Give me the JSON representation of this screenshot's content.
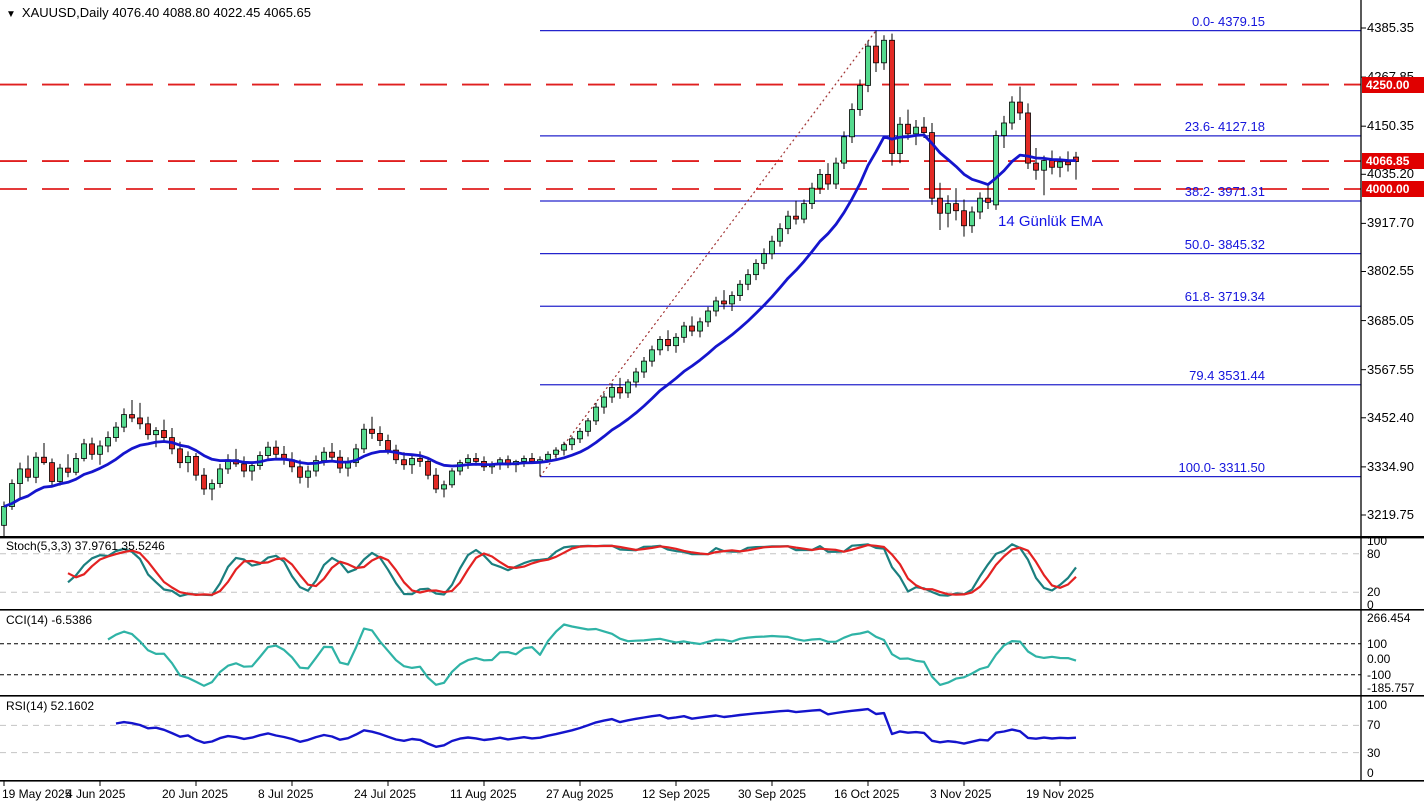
{
  "title": {
    "text": "XAUUSD,Daily  4076.40 4088.80 4022.45 4065.65",
    "symbol": "XAUUSD",
    "timeframe": "Daily"
  },
  "annotation": {
    "ema_label": "14 Günlük EMA"
  },
  "colors": {
    "bull": "#55da8e",
    "bear": "#e32a25",
    "wick": "#000000",
    "ema": "#1515cd",
    "fib_line": "#2424cc",
    "fib_text": "#1414dc",
    "red_dash": "#e01f1f",
    "trend_dotted": "#a03030",
    "stoch_main": "#1b7f7f",
    "stoch_signal": "#e32222",
    "cci_line": "#2fb3a6",
    "rsi_line": "#1414cc",
    "badge_bg": "#e00000",
    "gray_dash": "#c4c4c4",
    "black_dash": "#000000",
    "axis_line": "#000000"
  },
  "price_axis": {
    "labels": [
      "4385.35",
      "4267.85",
      "4150.35",
      "4035.20",
      "3917.70",
      "3802.55",
      "3685.05",
      "3567.55",
      "3452.40",
      "3334.90",
      "3219.75"
    ]
  },
  "price_badges": [
    {
      "text": "4250.00",
      "value": 4250.0
    },
    {
      "text": "4066.85",
      "value": 4066.85
    },
    {
      "text": "4000.00",
      "value": 4000.0
    }
  ],
  "x_axis": {
    "dates": [
      "19 May 2025",
      "4 Jun 2025",
      "20 Jun 2025",
      "8 Jul 2025",
      "24 Jul 2025",
      "11 Aug 2025",
      "27 Aug 2025",
      "12 Sep 2025",
      "30 Sep 2025",
      "16 Oct 2025",
      "3 Nov 2025",
      "19 Nov 2025"
    ],
    "candles_per_label": 12
  },
  "panes": {
    "stoch": {
      "label": "Stoch(5,3,3) 37.9761 35.5246",
      "axis_labels": [
        {
          "text": "100",
          "value": 100
        },
        {
          "text": "80",
          "value": 80
        },
        {
          "text": "20",
          "value": 20
        },
        {
          "text": "0",
          "value": 0
        }
      ],
      "level_lines": [
        80,
        20
      ]
    },
    "cci": {
      "label": "CCI(14) -6.5386",
      "axis_labels": [
        {
          "text": "266.454",
          "value": 266.454
        },
        {
          "text": "100",
          "value": 100
        },
        {
          "text": "0.00",
          "value": 0
        },
        {
          "text": "-100",
          "value": -100
        },
        {
          "text": "-185.757",
          "value": -185.757
        }
      ],
      "level_lines": [
        100,
        -100
      ]
    },
    "rsi": {
      "label": "RSI(14) 52.1602",
      "axis_labels": [
        {
          "text": "100",
          "value": 100
        },
        {
          "text": "70",
          "value": 70
        },
        {
          "text": "30",
          "value": 30
        },
        {
          "text": "0",
          "value": 0
        }
      ],
      "level_lines": [
        70,
        30
      ]
    }
  },
  "chart_data": {
    "type": "candlestick",
    "symbol": "XAUUSD",
    "timeframe": "Daily",
    "title": "XAUUSD,Daily",
    "last_ohlc": {
      "open": 4076.4,
      "high": 4088.8,
      "low": 4022.45,
      "close": 4065.65
    },
    "ylim_main": [
      3171.9,
      4452.4
    ],
    "current_price": 4066.85,
    "horizontal_lines": [
      4250.0,
      4000.0
    ],
    "fibonacci": {
      "anchor_index": 67,
      "peak_index": 109,
      "levels": [
        {
          "label": "0.0- 4379.15",
          "value": 4379.15
        },
        {
          "label": "23.6- 4127.18",
          "value": 4127.18
        },
        {
          "label": "38.2- 3971.31",
          "value": 3971.31
        },
        {
          "label": "50.0- 3845.32",
          "value": 3845.32
        },
        {
          "label": "61.8- 3719.34",
          "value": 3719.34
        },
        {
          "label": "79.4 3531.44",
          "value": 3531.44
        },
        {
          "label": "100.0- 3311.50",
          "value": 3311.5
        }
      ]
    },
    "trendline": {
      "from_index": 67,
      "from_value": 3311.5,
      "to_index": 109,
      "to_value": 4379.15
    },
    "overlays": {
      "ema_period": 14
    },
    "indicators": {
      "stoch": {
        "params": "5,3,3",
        "current_main": 37.9761,
        "current_signal": 35.5246,
        "levels": [
          80,
          20
        ],
        "range": [
          0,
          100
        ]
      },
      "cci": {
        "params": "14",
        "current": -6.5386,
        "range": [
          -185.757,
          266.454
        ],
        "levels": [
          100,
          -100
        ]
      },
      "rsi": {
        "params": "14",
        "current": 52.1602,
        "levels": [
          70,
          30
        ],
        "range": [
          0,
          100
        ]
      }
    },
    "candles": [
      [
        3195,
        3252,
        3165,
        3240
      ],
      [
        3240,
        3305,
        3232,
        3295
      ],
      [
        3295,
        3345,
        3258,
        3330
      ],
      [
        3330,
        3362,
        3300,
        3310
      ],
      [
        3310,
        3370,
        3296,
        3358
      ],
      [
        3358,
        3392,
        3340,
        3345
      ],
      [
        3345,
        3355,
        3288,
        3300
      ],
      [
        3300,
        3342,
        3290,
        3332
      ],
      [
        3332,
        3365,
        3310,
        3322
      ],
      [
        3322,
        3368,
        3315,
        3355
      ],
      [
        3355,
        3402,
        3348,
        3390
      ],
      [
        3390,
        3405,
        3352,
        3365
      ],
      [
        3365,
        3398,
        3340,
        3385
      ],
      [
        3385,
        3420,
        3370,
        3405
      ],
      [
        3405,
        3442,
        3395,
        3430
      ],
      [
        3430,
        3475,
        3418,
        3460
      ],
      [
        3460,
        3495,
        3442,
        3452
      ],
      [
        3452,
        3488,
        3425,
        3438
      ],
      [
        3438,
        3455,
        3400,
        3412
      ],
      [
        3412,
        3430,
        3382,
        3422
      ],
      [
        3422,
        3448,
        3398,
        3405
      ],
      [
        3405,
        3428,
        3365,
        3378
      ],
      [
        3378,
        3395,
        3332,
        3345
      ],
      [
        3345,
        3372,
        3322,
        3360
      ],
      [
        3360,
        3368,
        3302,
        3315
      ],
      [
        3315,
        3332,
        3268,
        3282
      ],
      [
        3282,
        3305,
        3255,
        3295
      ],
      [
        3295,
        3342,
        3285,
        3330
      ],
      [
        3330,
        3365,
        3318,
        3352
      ],
      [
        3352,
        3378,
        3335,
        3342
      ],
      [
        3342,
        3360,
        3310,
        3325
      ],
      [
        3325,
        3348,
        3302,
        3338
      ],
      [
        3338,
        3372,
        3328,
        3362
      ],
      [
        3362,
        3395,
        3350,
        3382
      ],
      [
        3382,
        3398,
        3355,
        3365
      ],
      [
        3365,
        3385,
        3340,
        3352
      ],
      [
        3352,
        3370,
        3322,
        3335
      ],
      [
        3335,
        3352,
        3295,
        3310
      ],
      [
        3310,
        3338,
        3285,
        3325
      ],
      [
        3325,
        3362,
        3312,
        3350
      ],
      [
        3350,
        3382,
        3338,
        3370
      ],
      [
        3370,
        3392,
        3348,
        3358
      ],
      [
        3358,
        3375,
        3320,
        3332
      ],
      [
        3332,
        3358,
        3312,
        3345
      ],
      [
        3345,
        3390,
        3335,
        3378
      ],
      [
        3378,
        3438,
        3368,
        3425
      ],
      [
        3425,
        3455,
        3402,
        3415
      ],
      [
        3415,
        3432,
        3385,
        3398
      ],
      [
        3398,
        3412,
        3365,
        3375
      ],
      [
        3375,
        3388,
        3342,
        3352
      ],
      [
        3352,
        3370,
        3328,
        3340
      ],
      [
        3340,
        3362,
        3318,
        3355
      ],
      [
        3355,
        3372,
        3335,
        3348
      ],
      [
        3348,
        3358,
        3305,
        3315
      ],
      [
        3315,
        3332,
        3272,
        3282
      ],
      [
        3282,
        3302,
        3262,
        3292
      ],
      [
        3292,
        3332,
        3285,
        3325
      ],
      [
        3325,
        3352,
        3315,
        3345
      ],
      [
        3345,
        3365,
        3330,
        3355
      ],
      [
        3355,
        3368,
        3338,
        3348
      ],
      [
        3348,
        3360,
        3325,
        3335
      ],
      [
        3335,
        3348,
        3318,
        3342
      ],
      [
        3342,
        3358,
        3328,
        3352
      ],
      [
        3352,
        3362,
        3332,
        3340
      ],
      [
        3340,
        3352,
        3322,
        3348
      ],
      [
        3348,
        3362,
        3335,
        3355
      ],
      [
        3355,
        3368,
        3342,
        3348
      ],
      [
        3348,
        3360,
        3312,
        3352
      ],
      [
        3352,
        3372,
        3345,
        3365
      ],
      [
        3365,
        3382,
        3352,
        3375
      ],
      [
        3375,
        3395,
        3362,
        3388
      ],
      [
        3388,
        3408,
        3375,
        3402
      ],
      [
        3402,
        3428,
        3392,
        3420
      ],
      [
        3420,
        3452,
        3408,
        3445
      ],
      [
        3445,
        3488,
        3435,
        3478
      ],
      [
        3478,
        3512,
        3462,
        3502
      ],
      [
        3502,
        3535,
        3488,
        3525
      ],
      [
        3525,
        3548,
        3498,
        3512
      ],
      [
        3512,
        3545,
        3500,
        3538
      ],
      [
        3538,
        3572,
        3525,
        3562
      ],
      [
        3562,
        3598,
        3548,
        3588
      ],
      [
        3588,
        3625,
        3575,
        3615
      ],
      [
        3615,
        3648,
        3602,
        3640
      ],
      [
        3640,
        3662,
        3612,
        3625
      ],
      [
        3625,
        3655,
        3608,
        3645
      ],
      [
        3645,
        3682,
        3632,
        3672
      ],
      [
        3672,
        3695,
        3648,
        3660
      ],
      [
        3660,
        3692,
        3645,
        3682
      ],
      [
        3682,
        3718,
        3670,
        3708
      ],
      [
        3708,
        3742,
        3695,
        3732
      ],
      [
        3732,
        3758,
        3712,
        3725
      ],
      [
        3725,
        3755,
        3708,
        3745
      ],
      [
        3745,
        3782,
        3732,
        3772
      ],
      [
        3772,
        3808,
        3758,
        3795
      ],
      [
        3795,
        3832,
        3782,
        3822
      ],
      [
        3822,
        3858,
        3808,
        3845
      ],
      [
        3845,
        3888,
        3832,
        3875
      ],
      [
        3875,
        3918,
        3862,
        3905
      ],
      [
        3905,
        3948,
        3892,
        3935
      ],
      [
        3935,
        3972,
        3915,
        3928
      ],
      [
        3928,
        3975,
        3918,
        3965
      ],
      [
        3965,
        4015,
        3952,
        4002
      ],
      [
        4002,
        4048,
        3988,
        4035
      ],
      [
        4035,
        4062,
        3998,
        4012
      ],
      [
        4012,
        4075,
        4000,
        4062
      ],
      [
        4062,
        4138,
        4048,
        4125
      ],
      [
        4125,
        4205,
        4110,
        4190
      ],
      [
        4190,
        4262,
        4175,
        4248
      ],
      [
        4248,
        4355,
        4232,
        4342
      ],
      [
        4342,
        4379.15,
        4280,
        4302
      ],
      [
        4302,
        4368,
        4285,
        4356
      ],
      [
        4356,
        4372,
        4056,
        4085
      ],
      [
        4085,
        4172,
        4062,
        4155
      ],
      [
        4155,
        4190,
        4118,
        4132
      ],
      [
        4132,
        4165,
        4105,
        4148
      ],
      [
        4148,
        4172,
        4122,
        4135
      ],
      [
        4135,
        4158,
        3962,
        3978
      ],
      [
        3978,
        4015,
        3902,
        3942
      ],
      [
        3942,
        3985,
        3908,
        3965
      ],
      [
        3965,
        4002,
        3925,
        3948
      ],
      [
        3948,
        3975,
        3886,
        3912
      ],
      [
        3912,
        3958,
        3895,
        3945
      ],
      [
        3945,
        3992,
        3928,
        3978
      ],
      [
        3978,
        4012,
        3952,
        3968
      ],
      [
        3962,
        4140,
        3950,
        4128
      ],
      [
        4128,
        4175,
        4098,
        4158
      ],
      [
        4158,
        4222,
        4142,
        4208
      ],
      [
        4208,
        4245,
        4165,
        4182
      ],
      [
        4182,
        4205,
        4048,
        4062
      ],
      [
        4062,
        4098,
        4022,
        4045
      ],
      [
        4045,
        4080,
        3985,
        4068
      ],
      [
        4068,
        4092,
        4035,
        4052
      ],
      [
        4052,
        4078,
        4028,
        4065
      ],
      [
        4065,
        4090,
        4042,
        4058
      ],
      [
        4076.4,
        4088.8,
        4022.45,
        4065.65
      ]
    ]
  }
}
